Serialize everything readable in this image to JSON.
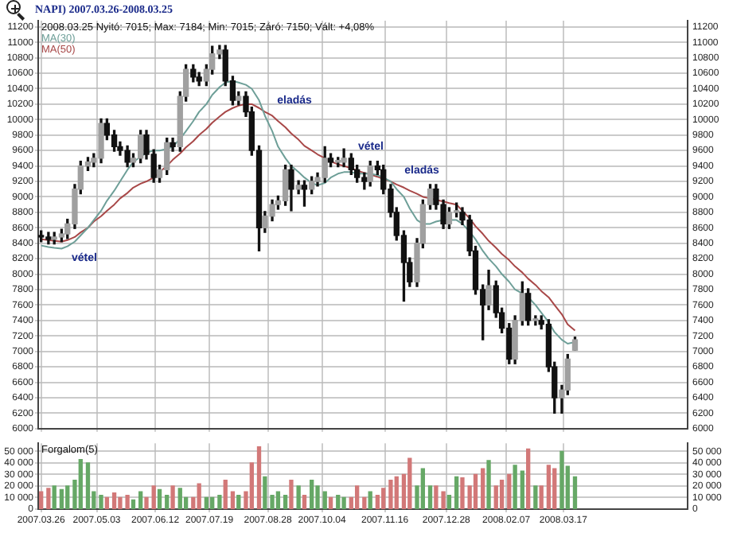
{
  "chart_data": [
    {
      "type": "candlestick",
      "title": "NAPI) 2007.03.26-2008.03.25",
      "subtitle": "2008.03.25 Nyitó: 7015; Max: 7184; Min: 7015; Záró: 7150; Vált: +4,08%",
      "x": [
        "2007-03-26",
        "2007-03-31",
        "2007-04-04",
        "2007-04-09",
        "2007-04-13",
        "2007-04-18",
        "2007-04-22",
        "2007-04-27",
        "2007-05-01",
        "2007-05-06",
        "2007-05-10",
        "2007-05-15",
        "2007-05-19",
        "2007-05-24",
        "2007-05-28",
        "2007-06-02",
        "2007-06-06",
        "2007-06-11",
        "2007-06-15",
        "2007-06-20",
        "2007-06-24",
        "2007-06-29",
        "2007-07-03",
        "2007-07-08",
        "2007-07-12",
        "2007-07-17",
        "2007-07-21",
        "2007-07-26",
        "2007-07-30",
        "2007-08-04",
        "2007-08-08",
        "2007-08-13",
        "2007-08-17",
        "2007-08-22",
        "2007-08-26",
        "2007-08-31",
        "2007-09-04",
        "2007-09-09",
        "2007-09-13",
        "2007-09-18",
        "2007-09-22",
        "2007-09-27",
        "2007-10-01",
        "2007-10-06",
        "2007-10-10",
        "2007-10-15",
        "2007-10-19",
        "2007-10-24",
        "2007-10-28",
        "2007-11-02",
        "2007-11-06",
        "2007-11-11",
        "2007-11-15",
        "2007-11-20",
        "2007-11-24",
        "2007-11-29",
        "2007-12-03",
        "2007-12-08",
        "2007-12-12",
        "2007-12-17",
        "2007-12-21",
        "2007-12-26",
        "2007-12-30",
        "2008-01-04",
        "2008-01-08",
        "2008-01-13",
        "2008-01-17",
        "2008-01-22",
        "2008-01-26",
        "2008-01-31",
        "2008-02-04",
        "2008-02-09",
        "2008-02-13",
        "2008-02-18",
        "2008-02-22",
        "2008-02-27",
        "2008-03-02",
        "2008-03-07",
        "2008-03-11",
        "2008-03-16",
        "2008-03-20",
        "2008-03-25"
      ],
      "ohlc": [
        [
          8500,
          8560,
          8420,
          8480
        ],
        [
          8480,
          8540,
          8390,
          8450
        ],
        [
          8450,
          8540,
          8390,
          8480
        ],
        [
          8480,
          8580,
          8420,
          8520
        ],
        [
          8520,
          8710,
          8460,
          8650
        ],
        [
          8650,
          9160,
          8590,
          9100
        ],
        [
          9100,
          9460,
          9040,
          9400
        ],
        [
          9400,
          9510,
          9340,
          9450
        ],
        [
          9450,
          9560,
          9390,
          9500
        ],
        [
          9500,
          10010,
          9440,
          9950
        ],
        [
          9950,
          10010,
          9740,
          9800
        ],
        [
          9800,
          9860,
          9590,
          9650
        ],
        [
          9650,
          9710,
          9540,
          9600
        ],
        [
          9600,
          9660,
          9390,
          9450
        ],
        [
          9450,
          9560,
          9390,
          9500
        ],
        [
          9500,
          9860,
          9440,
          9800
        ],
        [
          9800,
          9860,
          9490,
          9550
        ],
        [
          9550,
          9610,
          9190,
          9250
        ],
        [
          9250,
          9410,
          9190,
          9350
        ],
        [
          9350,
          9760,
          9290,
          9700
        ],
        [
          9700,
          9760,
          9590,
          9650
        ],
        [
          9650,
          10360,
          9590,
          10300
        ],
        [
          10300,
          10710,
          10240,
          10650
        ],
        [
          10650,
          10710,
          10490,
          10550
        ],
        [
          10550,
          10610,
          10440,
          10500
        ],
        [
          10500,
          10710,
          10440,
          10650
        ],
        [
          10650,
          10950,
          10590,
          10850
        ],
        [
          10850,
          10960,
          10790,
          10900
        ],
        [
          10900,
          10960,
          10440,
          10500
        ],
        [
          10500,
          10560,
          10190,
          10250
        ],
        [
          10250,
          10360,
          10190,
          10300
        ],
        [
          10300,
          10360,
          10040,
          10100
        ],
        [
          10100,
          10160,
          9540,
          9600
        ],
        [
          9600,
          9660,
          8300,
          8600
        ],
        [
          8600,
          8810,
          8540,
          8750
        ],
        [
          8750,
          8960,
          8690,
          8900
        ],
        [
          8900,
          9010,
          8840,
          8950
        ],
        [
          8950,
          9410,
          8890,
          9350
        ],
        [
          9350,
          9410,
          8820,
          9100
        ],
        [
          9100,
          9210,
          9040,
          9150
        ],
        [
          9150,
          9210,
          8880,
          9100
        ],
        [
          9100,
          9260,
          9040,
          9200
        ],
        [
          9200,
          9310,
          9140,
          9250
        ],
        [
          9250,
          9650,
          9190,
          9500
        ],
        [
          9500,
          9560,
          9390,
          9450
        ],
        [
          9450,
          9510,
          9390,
          9450
        ],
        [
          9450,
          9620,
          9390,
          9500
        ],
        [
          9500,
          9560,
          9290,
          9350
        ],
        [
          9350,
          9410,
          9190,
          9250
        ],
        [
          9250,
          9310,
          9100,
          9200
        ],
        [
          9200,
          9460,
          9140,
          9400
        ],
        [
          9400,
          9460,
          9290,
          9350
        ],
        [
          9350,
          9410,
          9040,
          9100
        ],
        [
          9100,
          9160,
          8740,
          8800
        ],
        [
          8800,
          8860,
          8440,
          8500
        ],
        [
          8500,
          8560,
          7650,
          8150
        ],
        [
          8150,
          8210,
          7840,
          7900
        ],
        [
          7900,
          8460,
          7840,
          8400
        ],
        [
          8400,
          8960,
          8340,
          8900
        ],
        [
          8900,
          9160,
          8840,
          9100
        ],
        [
          9100,
          9160,
          8840,
          8900
        ],
        [
          8900,
          8960,
          8590,
          8650
        ],
        [
          8650,
          8860,
          8590,
          8800
        ],
        [
          8800,
          8920,
          8740,
          8800
        ],
        [
          8800,
          8860,
          8640,
          8700
        ],
        [
          8700,
          8760,
          8240,
          8300
        ],
        [
          8300,
          8360,
          7740,
          7800
        ],
        [
          7800,
          7860,
          7150,
          7600
        ],
        [
          7600,
          8050,
          7540,
          7850
        ],
        [
          7850,
          7910,
          7440,
          7500
        ],
        [
          7500,
          7560,
          7240,
          7300
        ],
        [
          7300,
          7360,
          6840,
          6900
        ],
        [
          6900,
          7460,
          6840,
          7400
        ],
        [
          7400,
          7900,
          7340,
          7750
        ],
        [
          7750,
          7810,
          7340,
          7400
        ],
        [
          7400,
          7460,
          7340,
          7400
        ],
        [
          7400,
          7460,
          7290,
          7350
        ],
        [
          7350,
          7410,
          6740,
          6800
        ],
        [
          6800,
          6860,
          6200,
          6400
        ],
        [
          6400,
          6560,
          6200,
          6500
        ],
        [
          6500,
          6960,
          6440,
          6900
        ],
        [
          7015,
          7184,
          7015,
          7150
        ]
      ],
      "series": [
        {
          "name": "MA(30)",
          "type": "line",
          "color": "#6e9f98",
          "values": [
            8370,
            8350,
            8340,
            8330,
            8360,
            8420,
            8500,
            8600,
            8700,
            8820,
            8950,
            9080,
            9200,
            9350,
            9450,
            9520,
            9570,
            9600,
            9600,
            9620,
            9650,
            9750,
            9850,
            9980,
            10100,
            10200,
            10320,
            10420,
            10480,
            10500,
            10480,
            10450,
            10400,
            10250,
            10050,
            9850,
            9650,
            9500,
            9400,
            9320,
            9250,
            9180,
            9150,
            9180,
            9250,
            9300,
            9320,
            9320,
            9300,
            9300,
            9300,
            9280,
            9250,
            9200,
            9100,
            9000,
            8850,
            8700,
            8650,
            8650,
            8680,
            8700,
            8700,
            8700,
            8650,
            8550,
            8450,
            8300,
            8200,
            8100,
            8000,
            7900,
            7800,
            7750,
            7700,
            7600,
            7500,
            7380,
            7250,
            7150,
            7100,
            7120
          ]
        },
        {
          "name": "MA(50)",
          "type": "line",
          "color": "#a84848",
          "values": [
            8450,
            8440,
            8430,
            8420,
            8440,
            8480,
            8540,
            8600,
            8680,
            8750,
            8820,
            8900,
            8980,
            9050,
            9120,
            9170,
            9200,
            9250,
            9320,
            9400,
            9480,
            9560,
            9640,
            9720,
            9800,
            9880,
            9960,
            10040,
            10100,
            10150,
            10180,
            10200,
            10200,
            10150,
            10100,
            10050,
            9980,
            9900,
            9820,
            9740,
            9660,
            9600,
            9550,
            9500,
            9460,
            9420,
            9400,
            9370,
            9340,
            9310,
            9290,
            9260,
            9230,
            9200,
            9160,
            9120,
            9080,
            9040,
            9000,
            8980,
            8960,
            8940,
            8920,
            8900,
            8820,
            8720,
            8620,
            8520,
            8430,
            8340,
            8260,
            8180,
            8100,
            8020,
            7940,
            7860,
            7780,
            7700,
            7600,
            7480,
            7350,
            7270
          ]
        }
      ],
      "xlim": [
        "2007-03-24",
        "2008-06-10"
      ],
      "xticks": [
        {
          "value": "2007-03-26",
          "label": null
        },
        {
          "value": "2007-05-03",
          "label": null
        },
        {
          "value": "2007-06-12",
          "label": null
        },
        {
          "value": "2007-07-19",
          "label": null
        },
        {
          "value": "2007-08-28",
          "label": null
        },
        {
          "value": "2007-10-04",
          "label": null
        },
        {
          "value": "2007-11-16",
          "label": null
        },
        {
          "value": "2007-12-28",
          "label": null
        },
        {
          "value": "2008-02-07",
          "label": null
        },
        {
          "value": "2008-03-17",
          "label": null
        }
      ],
      "ylim": [
        6000,
        11280
      ],
      "yticks": [
        6000,
        6200,
        6400,
        6600,
        6800,
        7000,
        7200,
        7400,
        7600,
        7800,
        8000,
        8200,
        8400,
        8600,
        8800,
        9000,
        9200,
        9400,
        9600,
        9800,
        10000,
        10200,
        10400,
        10600,
        10800,
        11000,
        11200
      ],
      "y2lim": [
        6000,
        11280
      ],
      "y2ticks": [
        6000,
        6200,
        6400,
        6600,
        6800,
        7000,
        7200,
        7400,
        7600,
        7800,
        8000,
        8200,
        8400,
        8600,
        8800,
        9000,
        9200,
        9400,
        9600,
        9800,
        10000,
        10200,
        10400,
        10600,
        10800,
        11000,
        11200
      ],
      "annotations": [
        "vétel",
        "eladás",
        "vétel",
        "eladás"
      ],
      "grid": true,
      "legend": "top left",
      "tick_labels": "y"
    },
    {
      "type": "bar",
      "title": "Forgalom(5)",
      "x": [
        "2007-03-26",
        "2007-03-31",
        "2007-04-04",
        "2007-04-09",
        "2007-04-13",
        "2007-04-18",
        "2007-04-22",
        "2007-04-27",
        "2007-05-01",
        "2007-05-06",
        "2007-05-10",
        "2007-05-15",
        "2007-05-19",
        "2007-05-24",
        "2007-05-28",
        "2007-06-02",
        "2007-06-06",
        "2007-06-11",
        "2007-06-15",
        "2007-06-20",
        "2007-06-24",
        "2007-06-29",
        "2007-07-03",
        "2007-07-08",
        "2007-07-12",
        "2007-07-17",
        "2007-07-21",
        "2007-07-26",
        "2007-07-30",
        "2007-08-04",
        "2007-08-08",
        "2007-08-13",
        "2007-08-17",
        "2007-08-22",
        "2007-08-26",
        "2007-08-31",
        "2007-09-04",
        "2007-09-09",
        "2007-09-13",
        "2007-09-18",
        "2007-09-22",
        "2007-09-27",
        "2007-10-01",
        "2007-10-06",
        "2007-10-10",
        "2007-10-15",
        "2007-10-19",
        "2007-10-24",
        "2007-10-28",
        "2007-11-02",
        "2007-11-06",
        "2007-11-11",
        "2007-11-15",
        "2007-11-20",
        "2007-11-24",
        "2007-11-29",
        "2007-12-03",
        "2007-12-08",
        "2007-12-12",
        "2007-12-17",
        "2007-12-21",
        "2007-12-26",
        "2007-12-30",
        "2008-01-04",
        "2008-01-08",
        "2008-01-13",
        "2008-01-17",
        "2008-01-22",
        "2008-01-26",
        "2008-01-31",
        "2008-02-04",
        "2008-02-09",
        "2008-02-13",
        "2008-02-18",
        "2008-02-22",
        "2008-02-27",
        "2008-03-02",
        "2008-03-07",
        "2008-03-11",
        "2008-03-16",
        "2008-03-20",
        "2008-03-25"
      ],
      "values": [
        15000,
        18000,
        20000,
        17000,
        20000,
        25000,
        43000,
        40000,
        15000,
        12000,
        10000,
        14000,
        10000,
        12000,
        8000,
        15000,
        10000,
        20000,
        17000,
        12000,
        20000,
        18000,
        10000,
        10000,
        22000,
        10000,
        10000,
        12000,
        25000,
        15000,
        12000,
        15000,
        40000,
        54000,
        28000,
        12000,
        15000,
        12000,
        25000,
        20000,
        12000,
        25000,
        20000,
        15000,
        10000,
        12000,
        10000,
        10000,
        20000,
        10000,
        15000,
        12000,
        18000,
        25000,
        28000,
        30000,
        44000,
        20000,
        35000,
        20000,
        20000,
        15000,
        12000,
        28000,
        27000,
        20000,
        30000,
        35000,
        42000,
        20000,
        25000,
        30000,
        38000,
        33000,
        52000,
        20000,
        20000,
        38000,
        35000,
        50000,
        37000,
        28000
      ],
      "colors": [
        "#d27878",
        "#d27878",
        "#66a866",
        "#66a866",
        "#66a866",
        "#66a866",
        "#66a866",
        "#66a866",
        "#66a866",
        "#66a866",
        "#d27878",
        "#d27878",
        "#d27878",
        "#d27878",
        "#66a866",
        "#66a866",
        "#d27878",
        "#d27878",
        "#66a866",
        "#66a866",
        "#d27878",
        "#66a866",
        "#66a866",
        "#d27878",
        "#d27878",
        "#66a866",
        "#66a866",
        "#66a866",
        "#d27878",
        "#d27878",
        "#66a866",
        "#d27878",
        "#d27878",
        "#d27878",
        "#66a866",
        "#66a866",
        "#66a866",
        "#66a866",
        "#d27878",
        "#66a866",
        "#d27878",
        "#66a866",
        "#66a866",
        "#66a866",
        "#d27878",
        "#66a866",
        "#66a866",
        "#d27878",
        "#d27878",
        "#d27878",
        "#66a866",
        "#d27878",
        "#d27878",
        "#d27878",
        "#d27878",
        "#d27878",
        "#d27878",
        "#66a866",
        "#66a866",
        "#66a866",
        "#d27878",
        "#d27878",
        "#66a866",
        "#66a866",
        "#d27878",
        "#d27878",
        "#d27878",
        "#d27878",
        "#66a866",
        "#d27878",
        "#d27878",
        "#d27878",
        "#66a866",
        "#66a866",
        "#d27878",
        "#66a866",
        "#d27878",
        "#d27878",
        "#d27878",
        "#66a866",
        "#66a866",
        "#66a866"
      ],
      "xlim": [
        "2007-03-24",
        "2008-06-10"
      ],
      "xticks": [
        {
          "value": "2007-03-26",
          "label": "2007.03.26"
        },
        {
          "value": "2007-05-03",
          "label": "2007.05.03"
        },
        {
          "value": "2007-06-12",
          "label": "2007.06.12"
        },
        {
          "value": "2007-07-19",
          "label": "2007.07.19"
        },
        {
          "value": "2007-08-28",
          "label": "2007.08.28"
        },
        {
          "value": "2007-10-04",
          "label": "2007.10.04"
        },
        {
          "value": "2007-11-16",
          "label": "2007.11.16"
        },
        {
          "value": "2007-12-28",
          "label": "2007.12.28"
        },
        {
          "value": "2008-02-07",
          "label": "2008.02.07"
        },
        {
          "value": "2008-03-17",
          "label": "2008.03.17"
        }
      ],
      "ylim": [
        0,
        57000
      ],
      "yticks": [
        0,
        {
          "value": 10000,
          "label": "10 000"
        },
        {
          "value": 20000,
          "label": "20 000"
        },
        {
          "value": 30000,
          "label": "30 000"
        },
        {
          "value": 40000,
          "label": "40 000"
        },
        {
          "value": 50000,
          "label": "50 000"
        }
      ],
      "y2lim": [
        0,
        57000
      ],
      "y2ticks": [
        0,
        {
          "value": 10000,
          "label": "10 000"
        },
        {
          "value": 20000,
          "label": "20 000"
        },
        {
          "value": 30000,
          "label": "30 000"
        },
        {
          "value": 40000,
          "label": "40 000"
        },
        {
          "value": 50000,
          "label": "50 000"
        }
      ],
      "grid": true
    }
  ]
}
